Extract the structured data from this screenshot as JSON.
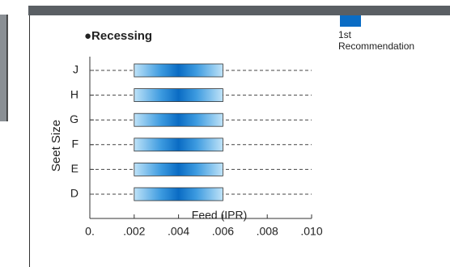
{
  "chart_data": {
    "type": "range-bar",
    "title": "●Recessing",
    "x_label": "Feed (IPR)",
    "y_label": "Seet Size",
    "categories": [
      "J",
      "H",
      "G",
      "F",
      "E",
      "D"
    ],
    "series": [
      {
        "name": "1st Recommendation",
        "color": "#0a6cc4",
        "low": [
          0.002,
          0.002,
          0.002,
          0.002,
          0.002,
          0.002
        ],
        "high": [
          0.006,
          0.006,
          0.006,
          0.006,
          0.006,
          0.006
        ]
      }
    ],
    "xlim": [
      0,
      0.01
    ],
    "xticks": [
      {
        "value": 0,
        "label": "0."
      },
      {
        "value": 0.002,
        "label": ".002"
      },
      {
        "value": 0.004,
        "label": ".004"
      },
      {
        "value": 0.006,
        "label": ".006"
      },
      {
        "value": 0.008,
        "label": ".008"
      },
      {
        "value": 0.01,
        "label": ".010"
      }
    ],
    "grid": true,
    "legend": "top-right"
  }
}
